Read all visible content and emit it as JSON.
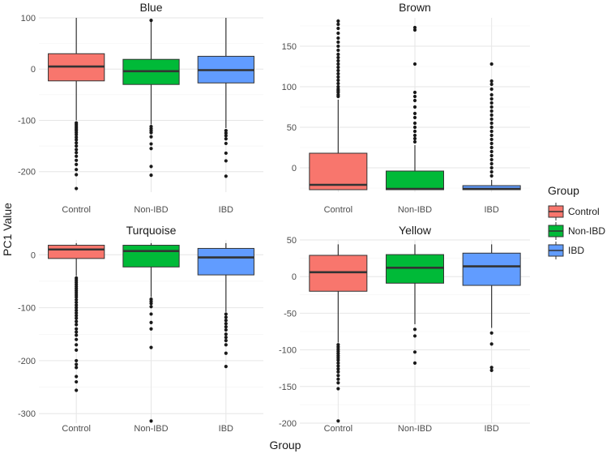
{
  "chart_data": {
    "type": "boxplot",
    "xlabel": "Group",
    "ylabel": "PC1 Value",
    "categories": [
      "Control",
      "Non-IBD",
      "IBD"
    ],
    "legend": {
      "title": "Group",
      "position": "right",
      "entries": [
        {
          "label": "Control",
          "color": "#F8766D"
        },
        {
          "label": "Non-IBD",
          "color": "#00BA38"
        },
        {
          "label": "IBD",
          "color": "#619CFF"
        }
      ]
    },
    "panels": [
      {
        "title": "Blue",
        "ylim": [
          -240,
          100
        ],
        "yticks": [
          {
            "v": 100,
            "label": "100"
          },
          {
            "v": 0,
            "label": "0"
          },
          {
            "v": -100,
            "label": "-100"
          },
          {
            "v": -200,
            "label": "-200"
          }
        ],
        "boxes": [
          {
            "group": "Control",
            "q1": -23,
            "median": 5,
            "q3": 30,
            "lower": -100,
            "upper": 100,
            "outliers": [
              -105,
              -108,
              -111,
              -114,
              -117,
              -120,
              -124,
              -128,
              -133,
              -138,
              -144,
              -150,
              -157,
              -163,
              -170,
              -178,
              -186,
              -196,
              -206,
              -233
            ]
          },
          {
            "group": "Non-IBD",
            "q1": -30,
            "median": -4,
            "q3": 19,
            "lower": -108,
            "upper": 93,
            "outliers": [
              95,
              -112,
              -116,
              -120,
              -124,
              -132,
              -146,
              -155,
              -190,
              -207
            ]
          },
          {
            "group": "IBD",
            "q1": -27,
            "median": -2,
            "q3": 25,
            "lower": -115,
            "upper": 100,
            "outliers": [
              -120,
              -125,
              -130,
              -136,
              -145,
              -164,
              -179,
              -209
            ]
          }
        ]
      },
      {
        "title": "Brown",
        "ylim": [
          -30,
          185
        ],
        "yticks": [
          {
            "v": 150,
            "label": "150"
          },
          {
            "v": 100,
            "label": "100"
          },
          {
            "v": 50,
            "label": "50"
          },
          {
            "v": 0,
            "label": "0"
          }
        ],
        "boxes": [
          {
            "group": "Control",
            "q1": -27,
            "median": -21,
            "q3": 18,
            "lower": -27,
            "upper": 84,
            "outliers": [
              88,
              90,
              93,
              95,
              97,
              100,
              104,
              108,
              112,
              116,
              120,
              124,
              128,
              132,
              136,
              140,
              145,
              150,
              155,
              160,
              166,
              172,
              177,
              181
            ]
          },
          {
            "group": "Non-IBD",
            "q1": -27,
            "median": -26,
            "q3": -4,
            "lower": -27,
            "upper": 28,
            "outliers": [
              32,
              36,
              40,
              45,
              50,
              55,
              62,
              67,
              75,
              83,
              88,
              93,
              128,
              170,
              173
            ]
          },
          {
            "group": "IBD",
            "q1": -27,
            "median": -26,
            "q3": -22,
            "lower": -27,
            "upper": -15,
            "outliers": [
              -10,
              -5,
              0,
              5,
              10,
              15,
              20,
              25,
              30,
              35,
              40,
              45,
              50,
              55,
              60,
              65,
              70,
              75,
              80,
              85,
              90,
              97,
              103,
              107,
              128
            ]
          }
        ]
      },
      {
        "title": "Turquoise",
        "ylim": [
          -318,
          28
        ],
        "yticks": [
          {
            "v": 0,
            "label": "0"
          },
          {
            "v": -100,
            "label": "-100"
          },
          {
            "v": -200,
            "label": "-200"
          },
          {
            "v": -300,
            "label": "-300"
          }
        ],
        "boxes": [
          {
            "group": "Control",
            "q1": -7,
            "median": 10,
            "q3": 18,
            "lower": -40,
            "upper": 22,
            "outliers": [
              -44,
              -48,
              -52,
              -56,
              -60,
              -64,
              -68,
              -72,
              -76,
              -80,
              -85,
              -90,
              -95,
              -100,
              -105,
              -110,
              -115,
              -120,
              -126,
              -132,
              -140,
              -146,
              -152,
              -160,
              -170,
              -180,
              -200,
              -207,
              -213,
              -230,
              -240,
              -256
            ]
          },
          {
            "group": "Non-IBD",
            "q1": -23,
            "median": 7,
            "q3": 18,
            "lower": -80,
            "upper": 22,
            "outliers": [
              -84,
              -88,
              -92,
              -98,
              -112,
              -128,
              -140,
              -175,
              -314
            ]
          },
          {
            "group": "IBD",
            "q1": -38,
            "median": -5,
            "q3": 12,
            "lower": -108,
            "upper": 22,
            "outliers": [
              -112,
              -118,
              -124,
              -130,
              -136,
              -142,
              -150,
              -156,
              -162,
              -170,
              -186,
              -211
            ]
          }
        ]
      },
      {
        "title": "Yellow",
        "ylim": [
          -200,
          50
        ],
        "yticks": [
          {
            "v": 50,
            "label": "50"
          },
          {
            "v": 0,
            "label": "0"
          },
          {
            "v": -50,
            "label": "-50"
          },
          {
            "v": -100,
            "label": "-100"
          },
          {
            "v": -150,
            "label": "-150"
          },
          {
            "v": -200,
            "label": "-200"
          }
        ],
        "boxes": [
          {
            "group": "Control",
            "q1": -20,
            "median": 6,
            "q3": 29,
            "lower": -90,
            "upper": 44,
            "outliers": [
              -93,
              -96,
              -99,
              -102,
              -105,
              -108,
              -111,
              -114,
              -118,
              -122,
              -126,
              -130,
              -135,
              -140,
              -145,
              -153,
              -197
            ]
          },
          {
            "group": "Non-IBD",
            "q1": -9,
            "median": 12,
            "q3": 30,
            "lower": -65,
            "upper": 44,
            "outliers": [
              -72,
              -81,
              -103,
              -118
            ]
          },
          {
            "group": "IBD",
            "q1": -12,
            "median": 14,
            "q3": 32,
            "lower": -70,
            "upper": 44,
            "outliers": [
              -77,
              -92,
              -124,
              -128
            ]
          }
        ]
      }
    ]
  }
}
